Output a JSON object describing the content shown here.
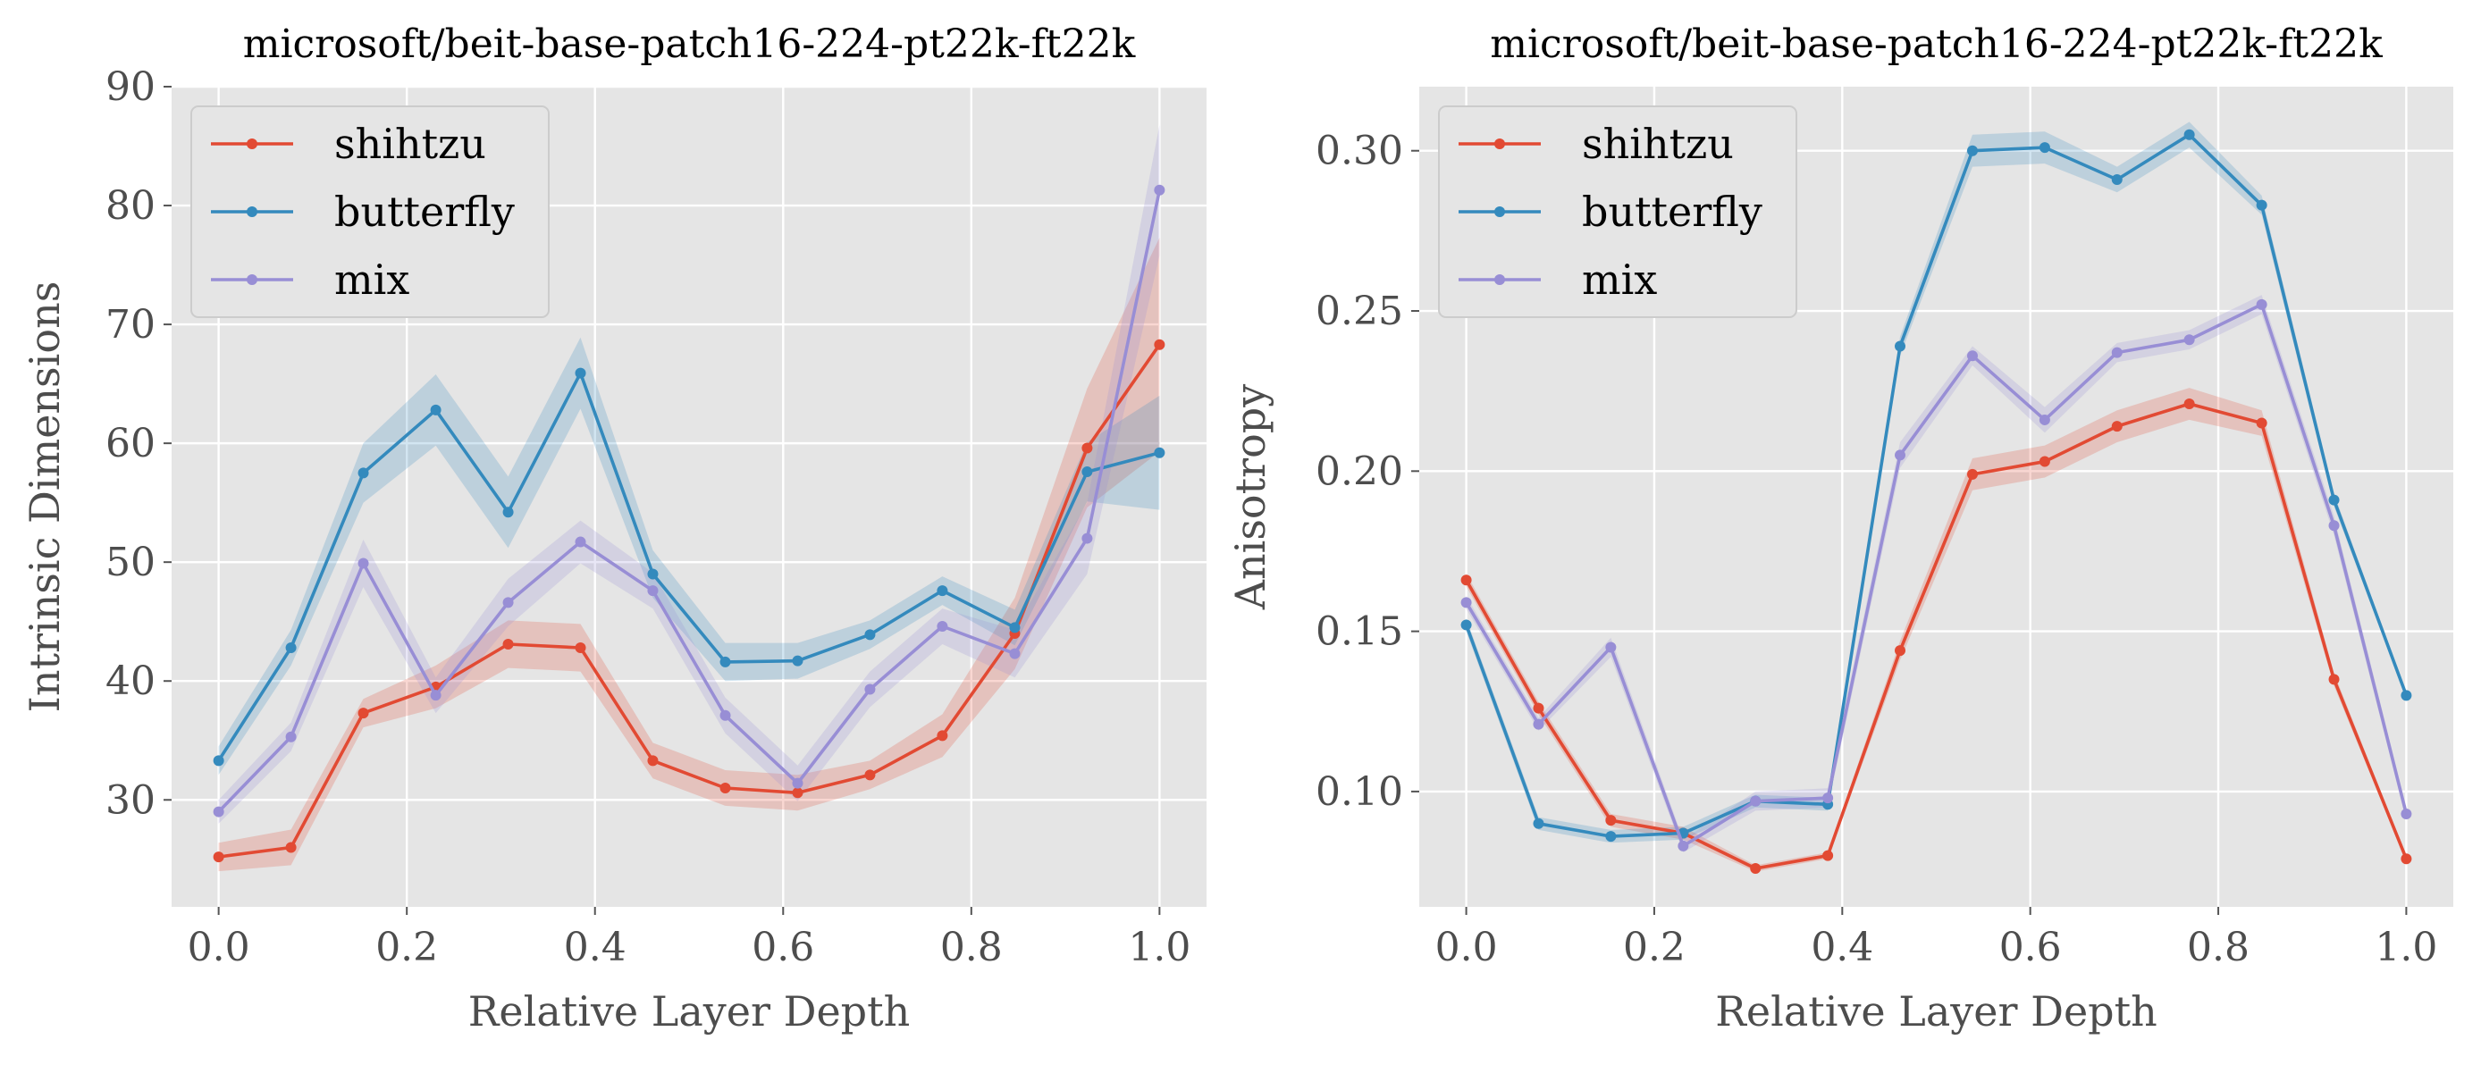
{
  "chart_data": [
    {
      "type": "line",
      "title": "microsoft/beit-base-patch16-224-pt22k-ft22k",
      "xlabel": "Relative Layer Depth",
      "ylabel": "Intrinsic Dimensions",
      "xlim": [
        -0.05,
        1.05
      ],
      "ylim": [
        21,
        90
      ],
      "xticks": [
        0.0,
        0.2,
        0.4,
        0.6,
        0.8,
        1.0
      ],
      "xtick_labels": [
        "0.0",
        "0.2",
        "0.4",
        "0.6",
        "0.8",
        "1.0"
      ],
      "yticks": [
        30,
        40,
        50,
        60,
        70,
        80,
        90
      ],
      "ytick_labels": [
        "30",
        "40",
        "50",
        "60",
        "70",
        "80",
        "90"
      ],
      "grid": true,
      "legend_position": "top-left",
      "x": [
        0.0,
        0.0769,
        0.1538,
        0.2308,
        0.3077,
        0.3846,
        0.4615,
        0.5385,
        0.6154,
        0.6923,
        0.7692,
        0.8462,
        0.9231,
        1.0
      ],
      "series": [
        {
          "name": "shihtzu",
          "color": "#E24A33",
          "values": [
            25.2,
            26.0,
            37.3,
            39.5,
            43.1,
            42.8,
            33.3,
            31.0,
            30.6,
            32.1,
            35.4,
            44.0,
            59.6,
            68.3
          ],
          "band": [
            1.2,
            1.5,
            1.2,
            1.8,
            2.0,
            2.0,
            1.5,
            1.5,
            1.5,
            1.2,
            1.8,
            3.0,
            5.0,
            9.0
          ]
        },
        {
          "name": "butterfly",
          "color": "#348ABD",
          "values": [
            33.3,
            42.8,
            57.5,
            62.8,
            54.2,
            65.9,
            49.0,
            41.6,
            41.7,
            43.9,
            47.6,
            44.5,
            57.6,
            59.2
          ],
          "band": [
            1.2,
            1.5,
            2.5,
            3.0,
            3.0,
            3.0,
            2.0,
            1.6,
            1.5,
            1.2,
            1.2,
            1.5,
            2.5,
            4.8
          ]
        },
        {
          "name": "mix",
          "color": "#988ED5",
          "values": [
            29.0,
            35.3,
            49.9,
            38.8,
            46.6,
            51.7,
            47.6,
            37.1,
            31.4,
            39.3,
            44.6,
            42.3,
            52.0,
            81.3
          ],
          "band": [
            1.0,
            1.2,
            2.0,
            1.5,
            2.0,
            1.8,
            1.5,
            1.5,
            1.5,
            1.5,
            1.5,
            2.0,
            3.0,
            5.5
          ]
        }
      ]
    },
    {
      "type": "line",
      "title": "microsoft/beit-base-patch16-224-pt22k-ft22k",
      "xlabel": "Relative Layer Depth",
      "ylabel": "Anisotropy",
      "xlim": [
        -0.05,
        1.05
      ],
      "ylim": [
        0.064,
        0.32
      ],
      "xticks": [
        0.0,
        0.2,
        0.4,
        0.6,
        0.8,
        1.0
      ],
      "xtick_labels": [
        "0.0",
        "0.2",
        "0.4",
        "0.6",
        "0.8",
        "1.0"
      ],
      "yticks": [
        0.1,
        0.15,
        0.2,
        0.25,
        0.3
      ],
      "ytick_labels": [
        "0.10",
        "0.15",
        "0.20",
        "0.25",
        "0.30"
      ],
      "grid": true,
      "legend_position": "top-left",
      "x": [
        0.0,
        0.0769,
        0.1538,
        0.2308,
        0.3077,
        0.3846,
        0.4615,
        0.5385,
        0.6154,
        0.6923,
        0.7692,
        0.8462,
        0.9231,
        1.0
      ],
      "series": [
        {
          "name": "shihtzu",
          "color": "#E24A33",
          "values": [
            0.166,
            0.126,
            0.091,
            0.087,
            0.076,
            0.08,
            0.144,
            0.199,
            0.203,
            0.214,
            0.221,
            0.215,
            0.135,
            0.079
          ],
          "band": [
            0.002,
            0.002,
            0.002,
            0.002,
            0.001,
            0.001,
            0.003,
            0.005,
            0.005,
            0.005,
            0.005,
            0.004,
            0.002,
            0.001
          ]
        },
        {
          "name": "butterfly",
          "color": "#348ABD",
          "values": [
            0.152,
            0.09,
            0.086,
            0.087,
            0.097,
            0.096,
            0.239,
            0.3,
            0.301,
            0.291,
            0.305,
            0.283,
            0.191,
            0.13
          ],
          "band": [
            0.002,
            0.002,
            0.002,
            0.002,
            0.002,
            0.002,
            0.003,
            0.005,
            0.005,
            0.004,
            0.004,
            0.003,
            0.002,
            0.001
          ]
        },
        {
          "name": "mix",
          "color": "#988ED5",
          "values": [
            0.159,
            0.121,
            0.145,
            0.083,
            0.097,
            0.098,
            0.205,
            0.236,
            0.216,
            0.237,
            0.241,
            0.252,
            0.183,
            0.093
          ],
          "band": [
            0.002,
            0.002,
            0.003,
            0.002,
            0.003,
            0.003,
            0.004,
            0.003,
            0.004,
            0.003,
            0.003,
            0.003,
            0.003,
            0.002
          ]
        }
      ]
    }
  ]
}
